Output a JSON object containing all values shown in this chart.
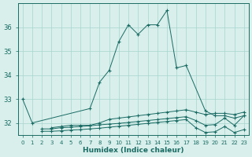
{
  "xlabel": "Humidex (Indice chaleur)",
  "x": [
    0,
    1,
    2,
    3,
    4,
    5,
    6,
    7,
    8,
    9,
    10,
    11,
    12,
    13,
    14,
    15,
    16,
    17,
    18,
    19,
    20,
    21,
    22,
    23
  ],
  "line1": [
    33.0,
    32.0,
    null,
    null,
    null,
    null,
    null,
    32.6,
    33.7,
    34.2,
    35.4,
    36.1,
    35.7,
    36.1,
    36.1,
    36.7,
    34.3,
    34.4,
    null,
    32.5,
    32.3,
    32.3,
    32.2,
    32.3
  ],
  "line2": [
    null,
    null,
    null,
    31.8,
    31.85,
    31.9,
    31.9,
    31.9,
    32.0,
    32.15,
    32.2,
    32.25,
    32.3,
    32.35,
    32.4,
    32.45,
    32.5,
    32.55,
    32.45,
    32.35,
    32.4,
    32.4,
    32.35,
    32.45
  ],
  "line3": [
    null,
    null,
    31.75,
    31.75,
    31.8,
    31.82,
    31.85,
    31.88,
    31.92,
    31.95,
    31.98,
    32.02,
    32.06,
    32.1,
    32.14,
    32.18,
    32.22,
    32.26,
    32.1,
    31.9,
    31.93,
    32.2,
    31.9,
    32.3
  ],
  "line4": [
    null,
    null,
    31.65,
    31.65,
    31.67,
    31.7,
    31.72,
    31.75,
    31.78,
    31.82,
    31.86,
    31.9,
    31.94,
    31.98,
    32.02,
    32.06,
    32.1,
    32.14,
    31.8,
    31.6,
    31.63,
    31.85,
    31.6,
    31.72
  ],
  "ylim": [
    31.5,
    37.0
  ],
  "yticks": [
    32,
    33,
    34,
    35,
    36
  ],
  "xticks": [
    0,
    1,
    2,
    3,
    4,
    5,
    6,
    7,
    8,
    9,
    10,
    11,
    12,
    13,
    14,
    15,
    16,
    17,
    18,
    19,
    20,
    21,
    22,
    23
  ],
  "bg_color": "#d8efec",
  "grid_color": "#a8d4cf",
  "line_color": "#1a6b63",
  "marker": "+"
}
